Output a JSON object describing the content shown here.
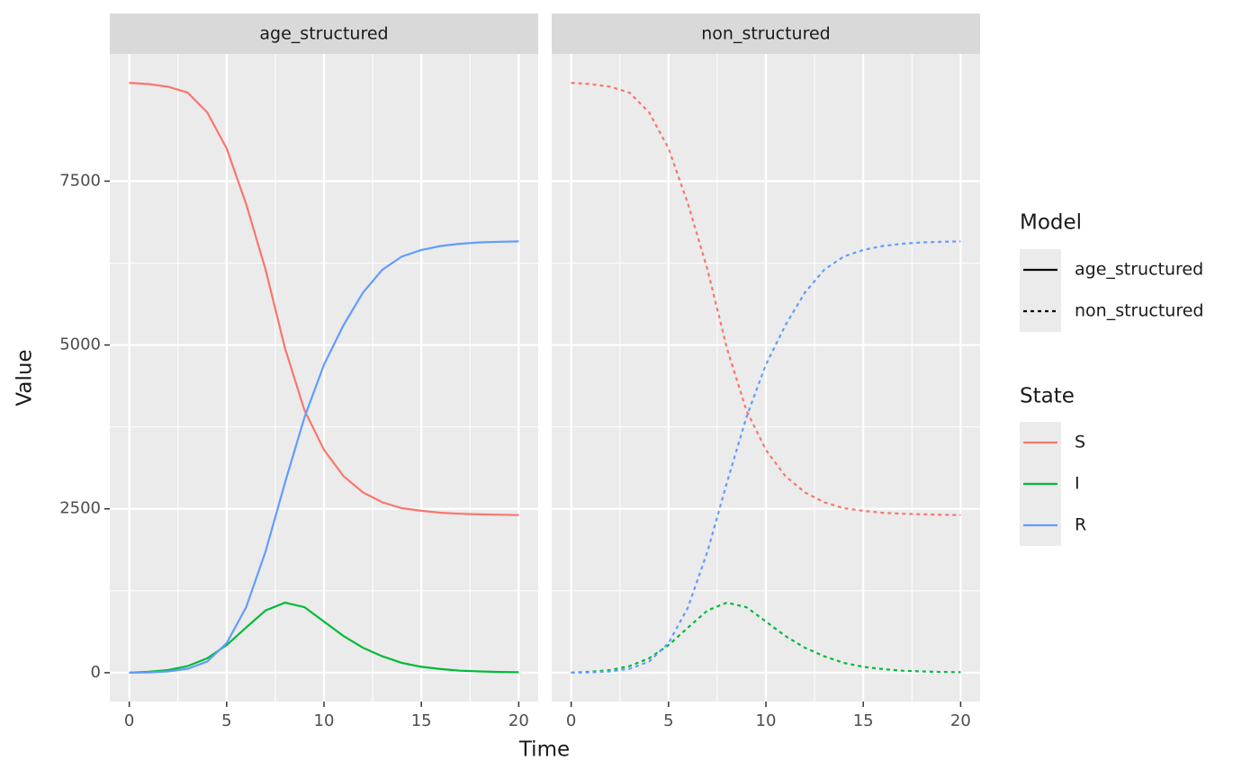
{
  "x_label": "Time",
  "y_label": "Value",
  "legend_titles": {
    "model": "Model",
    "state": "State"
  },
  "chart_data": [
    {
      "type": "line",
      "title": "age_structured",
      "linetype": "solid",
      "x": [
        0,
        1,
        2,
        3,
        4,
        5,
        6,
        7,
        8,
        9,
        10,
        11,
        12,
        13,
        14,
        15,
        16,
        17,
        18,
        19,
        20
      ],
      "series": [
        {
          "name": "S",
          "color": "#F8766D",
          "values": [
            9000,
            8980,
            8940,
            8850,
            8550,
            8000,
            7150,
            6150,
            4950,
            4000,
            3400,
            3000,
            2750,
            2600,
            2510,
            2470,
            2440,
            2425,
            2415,
            2410,
            2405
          ]
        },
        {
          "name": "I",
          "color": "#00BA38",
          "values": [
            0,
            15,
            40,
            100,
            220,
            420,
            690,
            950,
            1070,
            1000,
            780,
            560,
            380,
            250,
            150,
            90,
            55,
            30,
            20,
            12,
            8
          ]
        },
        {
          "name": "R",
          "color": "#619CFF",
          "values": [
            0,
            5,
            20,
            60,
            170,
            450,
            1000,
            1850,
            2900,
            3900,
            4700,
            5300,
            5800,
            6150,
            6350,
            6450,
            6510,
            6545,
            6565,
            6575,
            6580
          ]
        }
      ],
      "xlim": [
        -1,
        21
      ],
      "ylim": [
        -440,
        9440
      ],
      "xticks": [
        0,
        5,
        10,
        15,
        20
      ],
      "yticks": [
        0,
        2500,
        5000,
        7500
      ],
      "grid": true
    },
    {
      "type": "line",
      "title": "non_structured",
      "linetype": "dashed",
      "x": [
        0,
        1,
        2,
        3,
        4,
        5,
        6,
        7,
        8,
        9,
        10,
        11,
        12,
        13,
        14,
        15,
        16,
        17,
        18,
        19,
        20
      ],
      "series": [
        {
          "name": "S",
          "color": "#F8766D",
          "values": [
            9000,
            8980,
            8940,
            8850,
            8550,
            8000,
            7150,
            6150,
            4950,
            4000,
            3400,
            3000,
            2750,
            2600,
            2510,
            2470,
            2440,
            2425,
            2415,
            2410,
            2405
          ]
        },
        {
          "name": "I",
          "color": "#00BA38",
          "values": [
            0,
            15,
            40,
            100,
            220,
            420,
            690,
            950,
            1070,
            1000,
            780,
            560,
            380,
            250,
            150,
            90,
            55,
            30,
            20,
            12,
            8
          ]
        },
        {
          "name": "R",
          "color": "#619CFF",
          "values": [
            0,
            5,
            20,
            60,
            170,
            450,
            1000,
            1850,
            2900,
            3900,
            4700,
            5300,
            5800,
            6150,
            6350,
            6450,
            6510,
            6545,
            6565,
            6575,
            6580
          ]
        }
      ],
      "xlim": [
        -1,
        21
      ],
      "ylim": [
        -440,
        9440
      ],
      "xticks": [
        0,
        5,
        10,
        15,
        20
      ],
      "yticks": [
        0,
        2500,
        5000,
        7500
      ],
      "grid": true
    }
  ]
}
